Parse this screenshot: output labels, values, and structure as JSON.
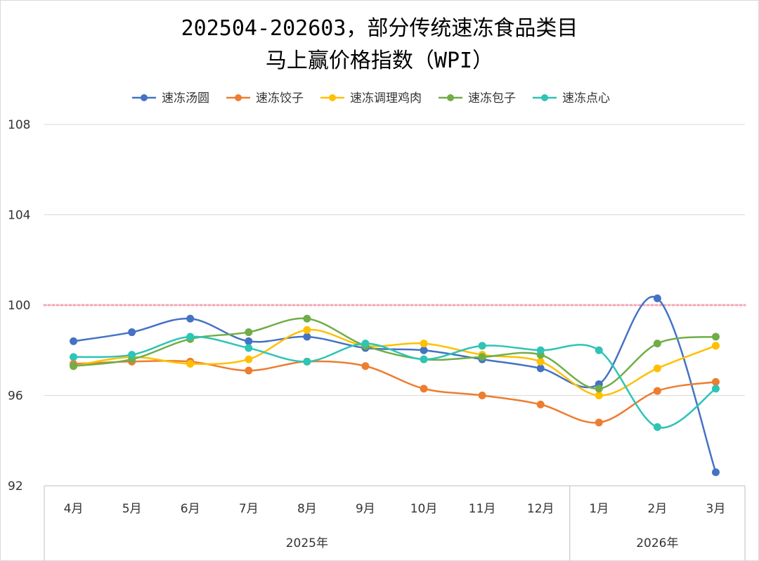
{
  "chart_data": {
    "type": "line",
    "title_line1": "202504-202603，部分传统速冻食品类目",
    "title_line2": "马上赢价格指数（WPI）",
    "categories": [
      "4月",
      "5月",
      "6月",
      "7月",
      "8月",
      "9月",
      "10月",
      "11月",
      "12月",
      "1月",
      "2月",
      "3月"
    ],
    "year_groups": [
      {
        "label": "2025年",
        "span": 9
      },
      {
        "label": "2026年",
        "span": 3
      }
    ],
    "ylim": [
      92,
      108
    ],
    "yticks": [
      92,
      96,
      100,
      104,
      108
    ],
    "ytick_labels": [
      "92",
      "96",
      "100",
      "104",
      "108"
    ],
    "reference_line": {
      "value": 100,
      "color": "#f4a6b4",
      "style": "dotted"
    },
    "legend_position": "top",
    "series": [
      {
        "name": "速冻汤圆",
        "color": "#4472c4",
        "values": [
          98.4,
          98.8,
          99.4,
          98.4,
          98.6,
          98.1,
          98.0,
          97.6,
          97.2,
          96.5,
          100.3,
          92.6
        ]
      },
      {
        "name": "速冻饺子",
        "color": "#ed7d31",
        "values": [
          97.4,
          97.5,
          97.5,
          97.1,
          97.5,
          97.3,
          96.3,
          96.0,
          95.6,
          94.8,
          96.2,
          96.6
        ]
      },
      {
        "name": "速冻调理鸡肉",
        "color": "#ffc000",
        "values": [
          97.3,
          97.7,
          97.4,
          97.6,
          98.9,
          98.2,
          98.3,
          97.8,
          97.5,
          96.0,
          97.2,
          98.2
        ]
      },
      {
        "name": "速冻包子",
        "color": "#70ad47",
        "values": [
          97.3,
          97.6,
          98.5,
          98.8,
          99.4,
          98.2,
          97.6,
          97.7,
          97.8,
          96.3,
          98.3,
          98.6
        ]
      },
      {
        "name": "速冻点心",
        "color": "#2ec4b6",
        "values": [
          97.7,
          97.8,
          98.6,
          98.1,
          97.5,
          98.3,
          97.6,
          98.2,
          98.0,
          98.0,
          94.6,
          96.3
        ]
      }
    ]
  }
}
